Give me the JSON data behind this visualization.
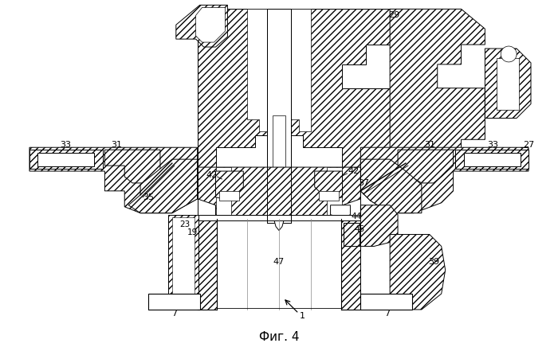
{
  "caption": "Фиг. 4",
  "bg_color": "#ffffff",
  "fig_width": 7.0,
  "fig_height": 4.41,
  "dpi": 100
}
